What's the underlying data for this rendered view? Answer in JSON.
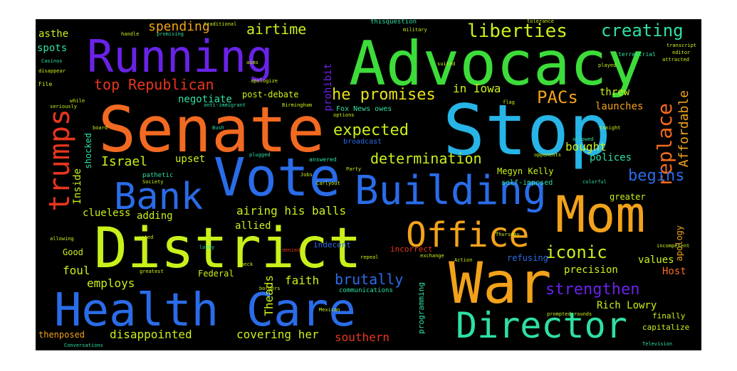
{
  "words": {
    "advocacy": "Advocacy",
    "senate": "Senate",
    "stop": "Stop",
    "running": "Running",
    "vote": "Vote",
    "district": "District",
    "mom": "Mom",
    "war": "War",
    "health_care": "Health Care",
    "building": "Building",
    "office": "Office",
    "director": "Director",
    "bank": "Bank",
    "trumps": "trumps",
    "liberties": "liberties",
    "creating": "creating",
    "airtime": "airtime",
    "spending": "spending",
    "top_republican": "top Republican",
    "negotiate": "negotiate",
    "he_promises": "he promises",
    "expected": "expected",
    "pacs": "PACs",
    "replace": "replace",
    "affordable": "Affordable",
    "determination": "determination",
    "begins": "begins",
    "israel": "Israel",
    "upset": "upset",
    "inside": "Inside",
    "airing_his_balls": "airing his balls",
    "allied": "allied",
    "adding": "adding",
    "clueless": "clueless",
    "iconic": "iconic",
    "strengthen": "strengthen",
    "brutally": "brutally",
    "faith": "faith",
    "employs": "employs",
    "foul": "foul",
    "theads": "Theads",
    "disappointed": "disappointed",
    "covering_her": "covering her",
    "southern": "southern",
    "rich_lowry": "Rich Lowry",
    "host": "Host",
    "values": "values",
    "precision": "precision",
    "megyn_kelly": "Megyn Kelly",
    "in_iowa": "in Iowa",
    "prohibit": "prohibit",
    "threw": "threw",
    "launches": "launches",
    "bought": "bought",
    "polices": "polices",
    "greater": "greater",
    "post_debate": "post-debate",
    "asthe": "asthe",
    "spots": "spots",
    "federal": "Federal",
    "good": "Good",
    "thenposed": "thenposed",
    "incorrect": "incorrect",
    "indecent": "indecent",
    "refusing": "refusing",
    "apology": "apology",
    "programming": "programming",
    "fox_news_owes": "Fox News owes",
    "broadcast": "broadcast",
    "shocked": "shocked",
    "self_imposed": "self-imposed",
    "capitalize": "capitalize",
    "finally": "finally",
    "communications": "communications",
    "thisquestion": "thisquestion",
    "pathetic": "pathetic",
    "traditional": "traditional",
    "promising": "promising",
    "handle": "handle",
    "terrestrial": "terrestrial",
    "military": "military",
    "tolerance": "tolerance",
    "allowed": "allowed",
    "answered": "answered",
    "carlyout": "Carlyout",
    "birmingham": "Birmingham",
    "anti_immigrant": "anti-immigrant",
    "television": "Television",
    "thursday": "Thursday",
    "exchange": "exchange",
    "prompted_rounds": "prompted rounds",
    "conversations": "Conversations",
    "opponents": "opponents",
    "colorful": "colorful",
    "played": "played",
    "attracted": "attracted",
    "editor": "editor",
    "transcript": "transcript",
    "disappear": "disappear",
    "file": "File",
    "while": "while",
    "society": "Society",
    "greatest": "greatest",
    "check": "Check",
    "repeal": "repeal",
    "borders": "borders",
    "options": "options",
    "flag": "flag",
    "tonight": "tonight",
    "denied": "denied",
    "incompetent": "incompetent",
    "jobs": "Jobs",
    "plugged": "plugged",
    "mexican": "Mexican",
    "action": "Action",
    "party": "Party",
    "lobby": "lobby",
    "suited": "suited",
    "casinos": "Casinos",
    "bush": "Bush",
    "allowing": "allowing",
    "wanted": "wanted",
    "apologize": "apologize",
    "aims": "aims",
    "seriously": "seriously",
    "board": "board"
  },
  "colors": {
    "background": "#000000",
    "page": "#ffffff",
    "orange": "#f26a21",
    "green": "#3ddc3a",
    "cyan": "#27b4e6",
    "violet": "#6a22e8",
    "blue": "#2a6ce8",
    "lime": "#c8f01a",
    "amber": "#f2a21a",
    "teal": "#2ee0a0",
    "red": "#e8361e",
    "yellow": "#e8e01a"
  }
}
